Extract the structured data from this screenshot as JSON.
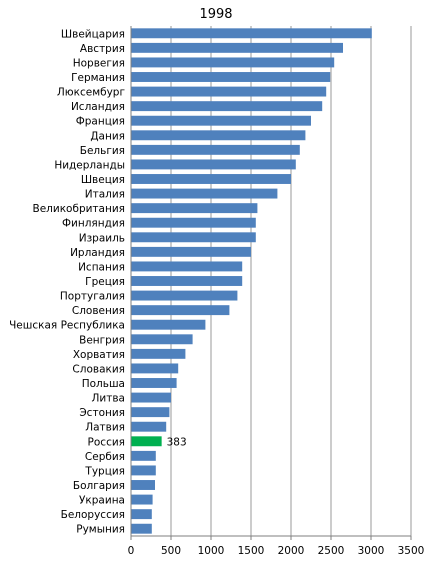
{
  "chart_data": {
    "type": "bar",
    "orientation": "horizontal",
    "title": "1998",
    "xlabel": "",
    "ylabel": "",
    "xlim": [
      0,
      3500
    ],
    "xticks": [
      0,
      500,
      1000,
      1500,
      2000,
      2500,
      3000,
      3500
    ],
    "grid": "vertical",
    "legend": "none",
    "colors": {
      "bar": "#4f81bd",
      "highlight": "#00b050",
      "grid": "#7f7f7f",
      "axis": "#7f7f7f"
    },
    "categories": [
      "Швейцария",
      "Австрия",
      "Норвегия",
      "Германия",
      "Люксембург",
      "Исландия",
      "Франция",
      "Дания",
      "Бельгия",
      "Нидерланды",
      "Швеция",
      "Италия",
      "Великобритания",
      "Финляндия",
      "Израиль",
      "Ирландия",
      "Испания",
      "Греция",
      "Португалия",
      "Словения",
      "Чешская Республика",
      "Венгрия",
      "Хорватия",
      "Словакия",
      "Польша",
      "Литва",
      "Эстония",
      "Латвия",
      "Россия",
      "Сербия",
      "Турция",
      "Болгария",
      "Украина",
      "Белоруссия",
      "Румыния"
    ],
    "values": [
      3010,
      2650,
      2540,
      2490,
      2440,
      2390,
      2250,
      2180,
      2110,
      2060,
      2000,
      1830,
      1580,
      1560,
      1560,
      1500,
      1390,
      1390,
      1330,
      1230,
      930,
      770,
      680,
      590,
      570,
      500,
      480,
      440,
      383,
      310,
      310,
      300,
      270,
      260,
      260
    ],
    "highlight_index": 28,
    "data_labels": [
      {
        "index": 28,
        "text": "383"
      }
    ]
  }
}
